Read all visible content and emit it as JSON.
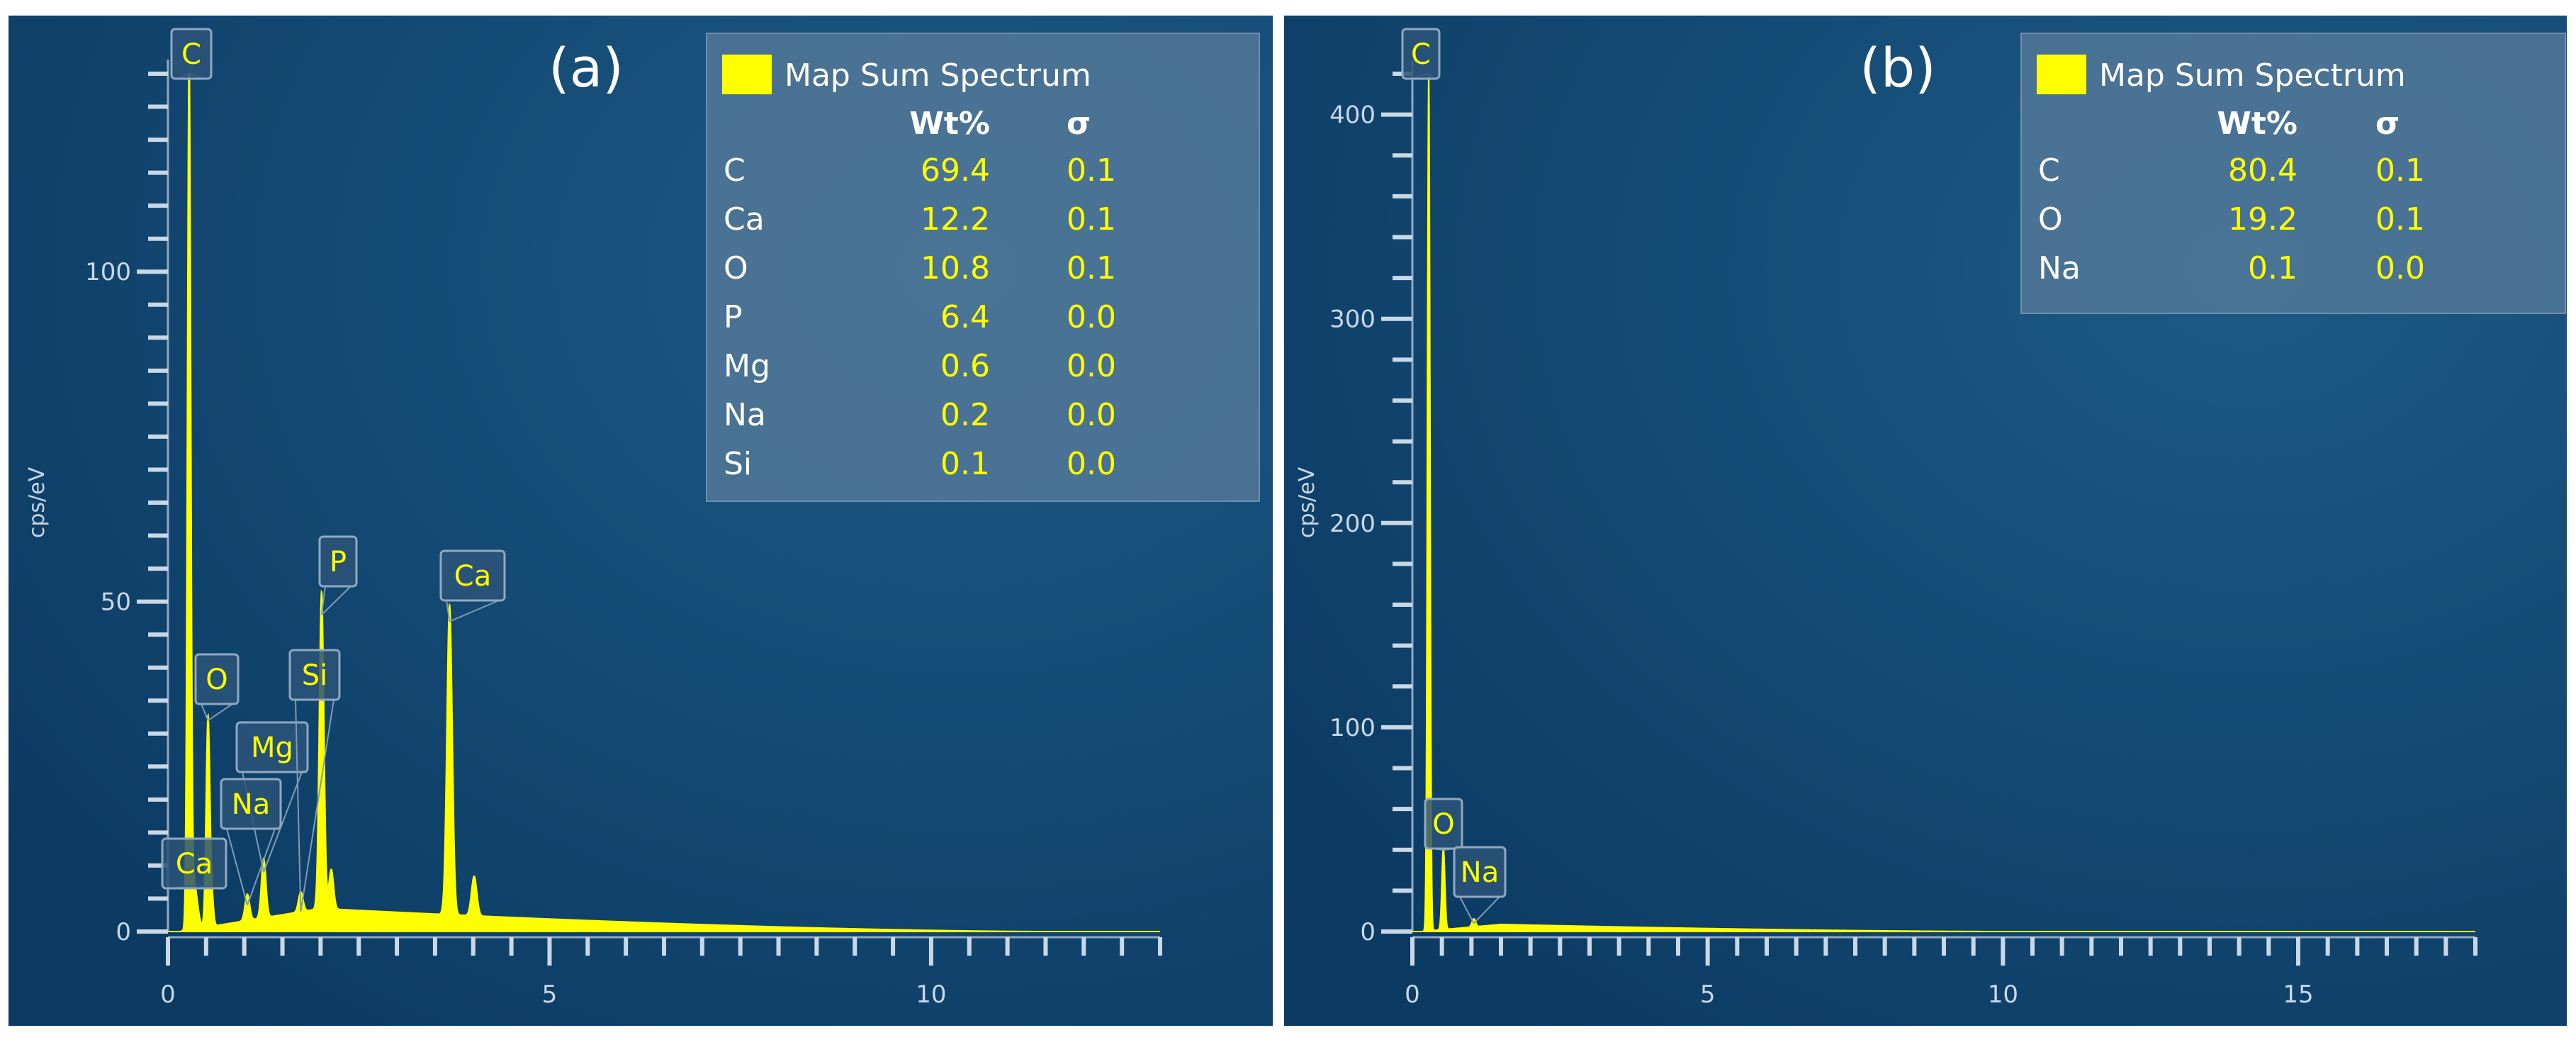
{
  "chart_data": [
    {
      "type": "line",
      "panel_label": "(a)",
      "title": "",
      "xlabel": "",
      "ylabel": "cps/eV",
      "xlim": [
        0,
        13
      ],
      "ylim": [
        0,
        130
      ],
      "x_ticks": [
        0,
        5,
        10
      ],
      "y_ticks": [
        0,
        50,
        100
      ],
      "x_minor_step": 0.5,
      "y_minor_step": 5,
      "series": [
        {
          "name": "Map Sum Spectrum",
          "color": "#ffff00",
          "peaks": [
            {
              "x": 0.34,
              "y": 7,
              "w": 0.045
            },
            {
              "x": 0.277,
              "y": 130,
              "w": 0.022
            },
            {
              "x": 0.525,
              "y": 32,
              "w": 0.025
            },
            {
              "x": 0.58,
              "y": 3.5,
              "w": 0.02
            },
            {
              "x": 1.04,
              "y": 4,
              "w": 0.03
            },
            {
              "x": 1.254,
              "y": 9,
              "w": 0.03
            },
            {
              "x": 1.74,
              "y": 3,
              "w": 0.03
            },
            {
              "x": 2.013,
              "y": 48,
              "w": 0.03
            },
            {
              "x": 2.14,
              "y": 6,
              "w": 0.03
            },
            {
              "x": 3.69,
              "y": 47,
              "w": 0.035
            },
            {
              "x": 4.012,
              "y": 6,
              "w": 0.035
            }
          ],
          "background": {
            "peak": 3.5,
            "peak_x": 2.0,
            "end_x": 11.5
          }
        }
      ],
      "peak_labels": [
        {
          "label": "C",
          "x": 0.277,
          "y": 130
        },
        {
          "label": "O",
          "x": 0.525,
          "y": 32
        },
        {
          "label": "Mg",
          "x": 1.254,
          "y": 9
        },
        {
          "label": "Na",
          "x": 1.04,
          "y": 4
        },
        {
          "label": "Si",
          "x": 1.74,
          "y": 3
        },
        {
          "label": "P",
          "x": 2.013,
          "y": 48
        },
        {
          "label": "Ca",
          "x": 3.69,
          "y": 47
        },
        {
          "label": "Ca",
          "x": 0.34,
          "y": 7
        }
      ],
      "legend": {
        "title": "Map Sum Spectrum",
        "swatch_color": "#ffff00",
        "placement": "top-right",
        "headers": [
          "Wt%",
          "σ"
        ],
        "rows": [
          {
            "element": "C",
            "wt": "69.4",
            "sigma": "0.1"
          },
          {
            "element": "Ca",
            "wt": "12.2",
            "sigma": "0.1"
          },
          {
            "element": "O",
            "wt": "10.8",
            "sigma": "0.1"
          },
          {
            "element": "P",
            "wt": "6.4",
            "sigma": "0.0"
          },
          {
            "element": "Mg",
            "wt": "0.6",
            "sigma": "0.0"
          },
          {
            "element": "Na",
            "wt": "0.2",
            "sigma": "0.0"
          },
          {
            "element": "Si",
            "wt": "0.1",
            "sigma": "0.0"
          }
        ]
      }
    },
    {
      "type": "line",
      "panel_label": "(b)",
      "title": "",
      "xlabel": "",
      "ylabel": "cps/eV",
      "xlim": [
        0,
        18
      ],
      "ylim": [
        0,
        420
      ],
      "x_ticks": [
        0,
        5,
        10,
        15
      ],
      "y_ticks": [
        0,
        100,
        200,
        300,
        400
      ],
      "x_minor_step": 0.5,
      "y_minor_step": 20,
      "series": [
        {
          "name": "Map Sum Spectrum",
          "color": "#ffff00",
          "peaks": [
            {
              "x": 0.277,
              "y": 420,
              "w": 0.022
            },
            {
              "x": 0.525,
              "y": 40,
              "w": 0.025
            },
            {
              "x": 1.04,
              "y": 4,
              "w": 0.03
            }
          ],
          "background": {
            "peak": 3.5,
            "peak_x": 1.5,
            "end_x": 10.0
          }
        }
      ],
      "peak_labels": [
        {
          "label": "C",
          "x": 0.277,
          "y": 420
        },
        {
          "label": "O",
          "x": 0.525,
          "y": 40
        },
        {
          "label": "Na",
          "x": 1.04,
          "y": 4
        }
      ],
      "legend": {
        "title": "Map Sum Spectrum",
        "swatch_color": "#ffff00",
        "placement": "top-right",
        "headers": [
          "Wt%",
          "σ"
        ],
        "rows": [
          {
            "element": "C",
            "wt": "80.4",
            "sigma": "0.1"
          },
          {
            "element": "O",
            "wt": "19.2",
            "sigma": "0.1"
          },
          {
            "element": "Na",
            "wt": "0.1",
            "sigma": "0.0"
          }
        ]
      }
    }
  ]
}
